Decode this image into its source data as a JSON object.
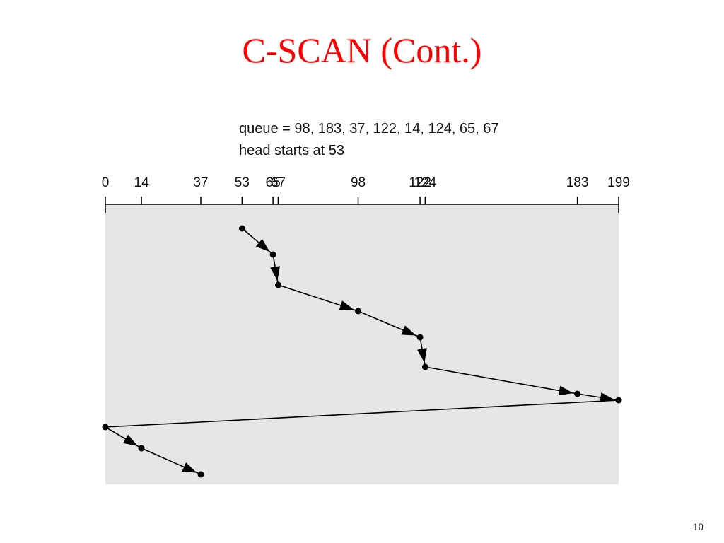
{
  "title": "C-SCAN (Cont.)",
  "queue_text": "queue = 98, 183, 37, 122, 14, 124, 65, 67",
  "head_text": "head starts at 53",
  "axis": {
    "xlim": [
      0,
      199
    ],
    "ticks": [
      0,
      14,
      37,
      53,
      65,
      67,
      98,
      122,
      124,
      183,
      199
    ]
  },
  "path": [
    53,
    65,
    67,
    98,
    122,
    124,
    183,
    199,
    0,
    14,
    37
  ],
  "page_number": "10"
}
